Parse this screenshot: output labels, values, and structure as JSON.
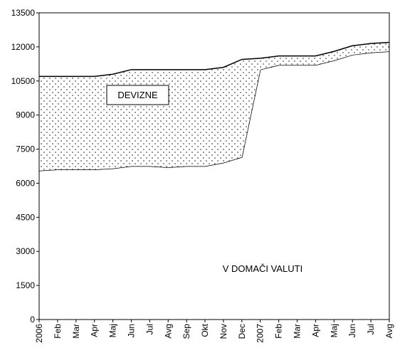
{
  "chart_data": {
    "type": "stacked_area",
    "categories": [
      "2006",
      "Feb",
      "Mar",
      "Apr",
      "Maj",
      "Jun",
      "Jul",
      "Avg",
      "Sep",
      "Okt",
      "Nov",
      "Dec",
      "2007",
      "Feb",
      "Mar",
      "Apr",
      "Maj",
      "Jun",
      "Jul",
      "Avg"
    ],
    "series": [
      {
        "name": "V DOMAČI VALUTI",
        "color": "#ffffff",
        "values": [
          6550,
          6600,
          6600,
          6600,
          6650,
          6750,
          6750,
          6700,
          6750,
          6750,
          6900,
          7150,
          11000,
          11200,
          11200,
          11200,
          11400,
          11650,
          11750,
          11800
        ]
      },
      {
        "name": "DEVIZNE",
        "color": "#000000",
        "pattern": "dots",
        "values": [
          4150,
          4100,
          4100,
          4100,
          4150,
          4250,
          4250,
          4300,
          4250,
          4250,
          4200,
          4300,
          500,
          400,
          400,
          400,
          400,
          400,
          400,
          400
        ]
      }
    ],
    "ylim": [
      0,
      13500
    ],
    "yticks": [
      0,
      1500,
      3000,
      4500,
      6000,
      7500,
      9000,
      10500,
      12000,
      13500
    ]
  }
}
